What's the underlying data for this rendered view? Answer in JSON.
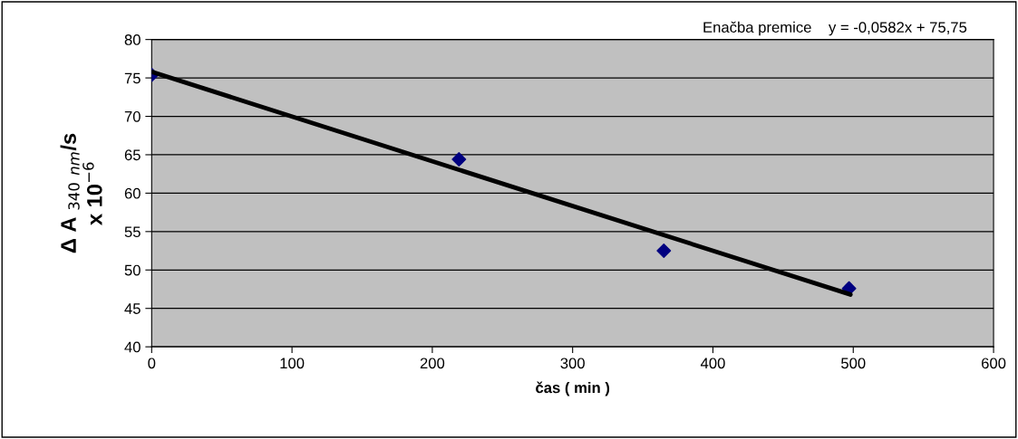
{
  "chart_data": {
    "type": "scatter",
    "xlabel": "čas ( min )",
    "ylabel": "Δ A $_{340}$ $_{nm}$/s\nx 10$^{−6}$",
    "annotations": [
      "Enačba premice    y = -0,0582x + 75,75"
    ],
    "series": [
      {
        "color": "#000080",
        "marker": "diamond",
        "x": [
          0,
          219,
          365,
          497
        ],
        "values": [
          75.4,
          64.4,
          52.5,
          47.6
        ]
      },
      {
        "type": "line",
        "color": "#000000",
        "marker": "none",
        "line_style": "solid",
        "x": [
          0,
          498
        ],
        "values": [
          75.8,
          46.8
        ]
      }
    ],
    "xlim": [
      0,
      600
    ],
    "xticks": [
      0,
      100,
      200,
      300,
      400,
      500,
      600
    ],
    "ylim": [
      40,
      80
    ],
    "yticks": [
      40,
      45,
      50,
      55,
      60,
      65,
      70,
      75,
      80
    ],
    "grid": "y",
    "legend": false
  }
}
